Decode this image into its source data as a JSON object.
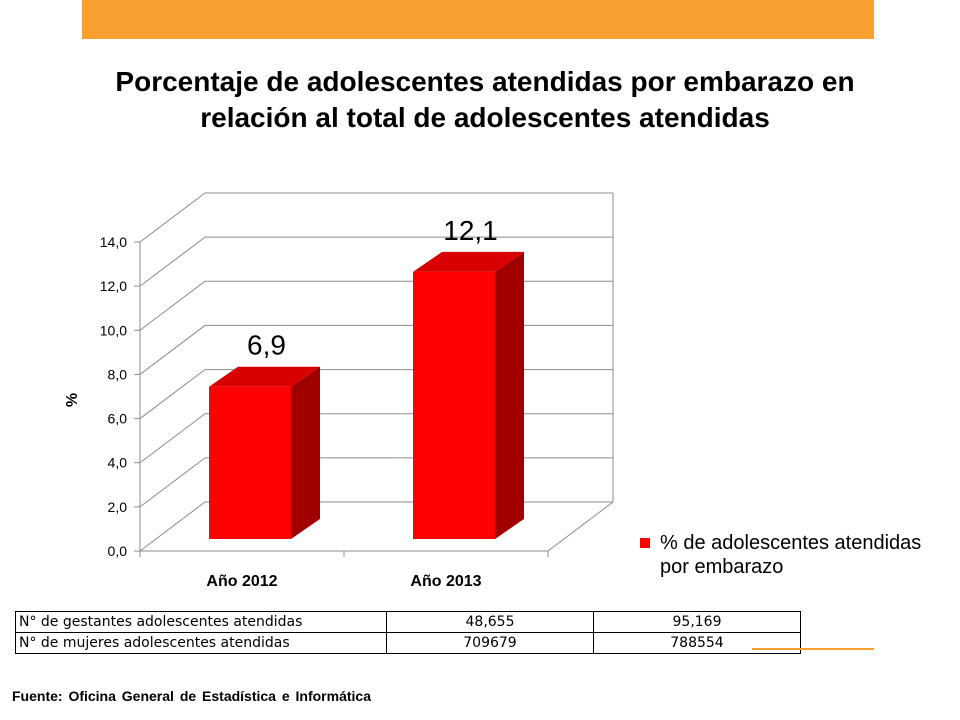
{
  "title": "Porcentaje de adolescentes atendidas por embarazo en relación al total de adolescentes atendidas",
  "chart_data": {
    "type": "bar",
    "categories": [
      "Año 2012",
      "Año 2013"
    ],
    "series": [
      {
        "name": "% de adolescentes atendidas por embarazo",
        "values": [
          6.9,
          12.1
        ],
        "color": "#ff0000"
      }
    ],
    "data_labels": [
      "6,9",
      "12,1"
    ],
    "ylabel": "%",
    "ylim": [
      0,
      14
    ],
    "yticks": [
      "0,0",
      "2,0",
      "4,0",
      "6,0",
      "8,0",
      "10,0",
      "12,0",
      "14,0"
    ],
    "grid": true,
    "style": "3d",
    "legend_position": "right"
  },
  "legend": {
    "label": "% de adolescentes atendidas por embarazo",
    "color": "#ff0000"
  },
  "table": {
    "rows": [
      {
        "label": "N° de gestantes adolescentes atendidas",
        "v2012": "48,655",
        "v2013": "95,169"
      },
      {
        "label": "N° de mujeres adolescentes atendidas",
        "v2012": "709679",
        "v2013": "788554"
      }
    ]
  },
  "source": "Fuente: Oficina General de Estadística e Informática",
  "colors": {
    "accent": "#f7a030",
    "bar": "#ff0000",
    "bar_side": "#a00000"
  }
}
